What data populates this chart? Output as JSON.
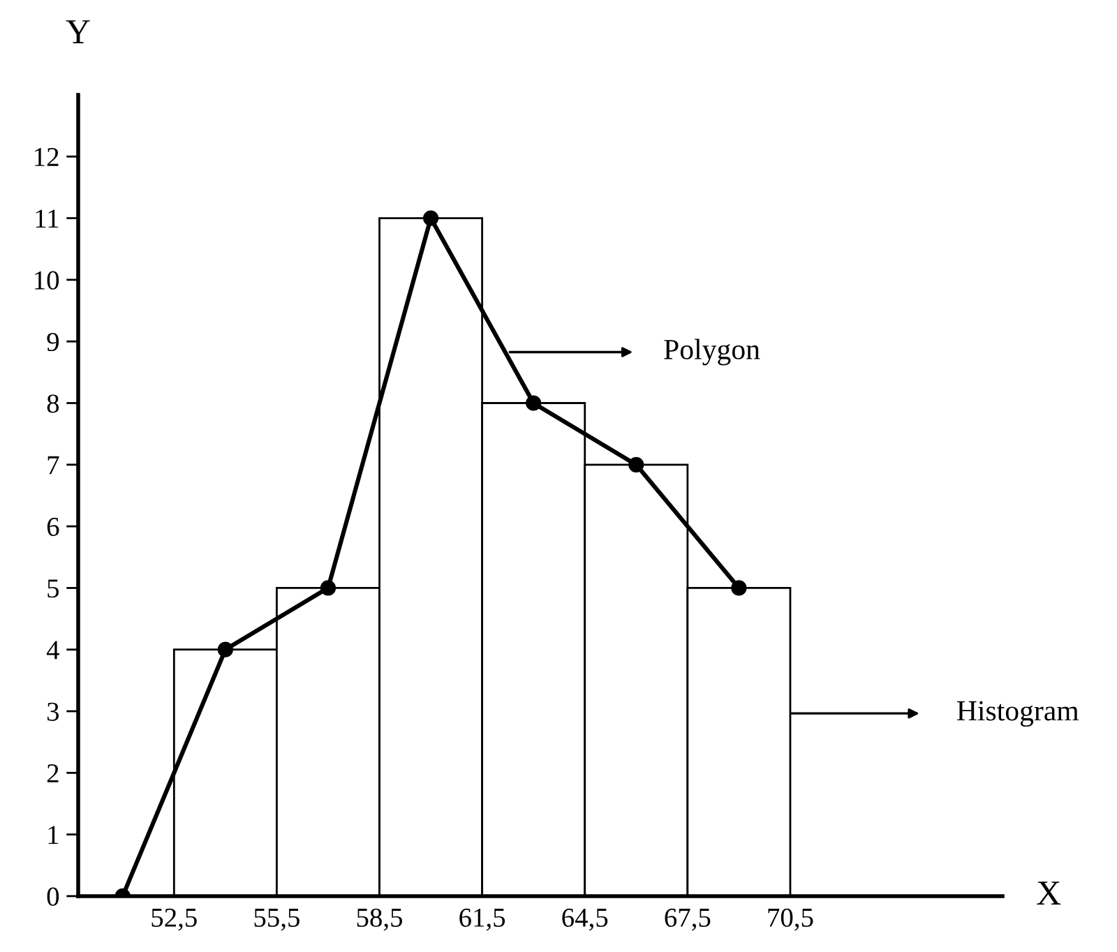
{
  "chart_data": {
    "type": "histogram",
    "xlabel": "X",
    "ylabel": "Y",
    "bins": [
      52.5,
      55.5,
      58.5,
      61.5,
      64.5,
      67.5,
      70.5
    ],
    "values": [
      4,
      5,
      11,
      8,
      7,
      5
    ],
    "color": "#ffffff",
    "series": [
      {
        "type": "line",
        "x": [
          51,
          54,
          57,
          60,
          63,
          66,
          69
        ],
        "values": [
          0,
          4,
          5,
          11,
          8,
          7,
          5
        ],
        "color": "#000000"
      }
    ],
    "marker": "circle",
    "line_style": "solid",
    "xlim": [
      49.7,
      76.7
    ],
    "ylim": [
      0,
      13
    ],
    "xticks": [
      {
        "value": 52.5,
        "label": "52,5"
      },
      {
        "value": 55.5,
        "label": "55,5"
      },
      {
        "value": 58.5,
        "label": "58,5"
      },
      {
        "value": 61.5,
        "label": "61,5"
      },
      {
        "value": 64.5,
        "label": "64,5"
      },
      {
        "value": 67.5,
        "label": "67,5"
      },
      {
        "value": 70.5,
        "label": "70,5"
      }
    ],
    "yticks": [
      0,
      1,
      2,
      3,
      4,
      5,
      6,
      7,
      8,
      9,
      10,
      11,
      12
    ],
    "annotations": [
      "Polygon",
      "Histogram"
    ],
    "grid": false,
    "legend": false
  }
}
